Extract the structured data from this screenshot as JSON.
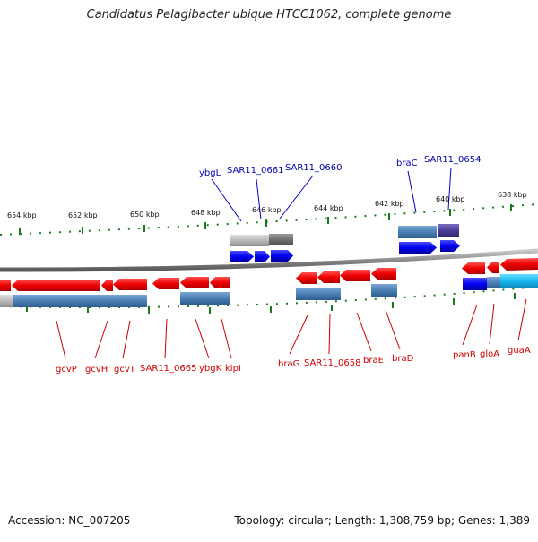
{
  "title": "Candidatus Pelagibacter ubique HTCC1062, complete genome",
  "footer": {
    "accession": "Accession: NC_007205",
    "summary": "Topology: circular; Length: 1,308,759 bp; Genes: 1,389"
  },
  "colors": {
    "forward_gene": "#0000ee",
    "reverse_gene": "#ee0000",
    "cds_bar": "#4a7fb5",
    "pseudo_gray": "#b0b0b0",
    "tick_green": "#1a7a1a",
    "label_blue": "#0000aa",
    "label_red": "#cc0000",
    "backbone": "#888888"
  },
  "scale_ticks": [
    "654 kbp",
    "652 kbp",
    "650 kbp",
    "648 kbp",
    "646 kbp",
    "644 kbp",
    "642 kbp",
    "640 kbp",
    "638 kbp"
  ],
  "top_labels": [
    "ybgL",
    "SAR11_0661",
    "SAR11_0660",
    "braC",
    "SAR11_0654"
  ],
  "bottom_labels": [
    "gcvP",
    "gcvH",
    "gcvT",
    "SAR11_0665",
    "ybgK",
    "kipI",
    "braG",
    "SAR11_0658",
    "braE",
    "braD",
    "panB",
    "gloA",
    "guaA"
  ]
}
